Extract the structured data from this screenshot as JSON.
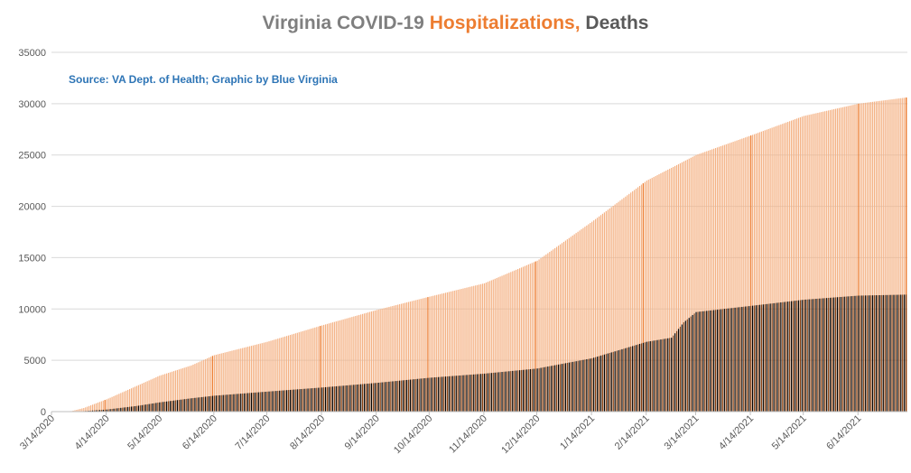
{
  "chart_data": {
    "type": "bar",
    "title_parts": {
      "lead": "Virginia COVID-19",
      "hosp": "Hospitalizations,",
      "deaths": "Deaths"
    },
    "annotation": "Source: VA Dept. of Health; Graphic by Blue Virginia",
    "ylim": [
      0,
      35000
    ],
    "y_ticks": [
      0,
      5000,
      10000,
      15000,
      20000,
      25000,
      30000,
      35000
    ],
    "x_range": [
      "2020-03-14",
      "2021-07-11"
    ],
    "x_tick_labels": [
      "3/14/2020",
      "4/14/2020",
      "5/14/2020",
      "6/14/2020",
      "7/14/2020",
      "8/14/2020",
      "9/14/2020",
      "10/14/2020",
      "11/14/2020",
      "12/14/2020",
      "1/14/2021",
      "2/14/2021",
      "3/14/2021",
      "4/14/2021",
      "5/14/2021",
      "6/14/2021"
    ],
    "stacked": false,
    "grid": true,
    "legend": "none",
    "series": [
      {
        "name": "Hospitalizations",
        "color": "#f4b183",
        "accent": "#ed7d31",
        "points": [
          [
            "2020-03-14",
            0
          ],
          [
            "2020-03-25",
            50
          ],
          [
            "2020-04-01",
            350
          ],
          [
            "2020-04-14",
            1200
          ],
          [
            "2020-05-01",
            2500
          ],
          [
            "2020-05-14",
            3500
          ],
          [
            "2020-06-01",
            4500
          ],
          [
            "2020-06-14",
            5500
          ],
          [
            "2020-07-14",
            6800
          ],
          [
            "2020-08-14",
            8400
          ],
          [
            "2020-09-14",
            9900
          ],
          [
            "2020-10-14",
            11200
          ],
          [
            "2020-11-14",
            12500
          ],
          [
            "2020-12-14",
            14700
          ],
          [
            "2021-01-14",
            18500
          ],
          [
            "2021-02-14",
            22500
          ],
          [
            "2021-03-14",
            25000
          ],
          [
            "2021-04-14",
            26900
          ],
          [
            "2021-05-14",
            28800
          ],
          [
            "2021-06-14",
            30000
          ],
          [
            "2021-07-11",
            30600
          ]
        ]
      },
      {
        "name": "Deaths",
        "color": "#843c0c",
        "accent": "#000000",
        "points": [
          [
            "2020-03-14",
            0
          ],
          [
            "2020-03-25",
            10
          ],
          [
            "2020-04-01",
            50
          ],
          [
            "2020-04-14",
            200
          ],
          [
            "2020-05-01",
            550
          ],
          [
            "2020-05-14",
            900
          ],
          [
            "2020-06-01",
            1300
          ],
          [
            "2020-06-14",
            1550
          ],
          [
            "2020-07-14",
            1950
          ],
          [
            "2020-08-14",
            2350
          ],
          [
            "2020-09-14",
            2800
          ],
          [
            "2020-10-14",
            3300
          ],
          [
            "2020-11-14",
            3700
          ],
          [
            "2020-12-14",
            4200
          ],
          [
            "2021-01-14",
            5200
          ],
          [
            "2021-02-14",
            6800
          ],
          [
            "2021-02-28",
            7200
          ],
          [
            "2021-03-07",
            8700
          ],
          [
            "2021-03-14",
            9700
          ],
          [
            "2021-04-14",
            10300
          ],
          [
            "2021-05-14",
            10900
          ],
          [
            "2021-06-14",
            11300
          ],
          [
            "2021-07-11",
            11400
          ]
        ]
      }
    ]
  }
}
